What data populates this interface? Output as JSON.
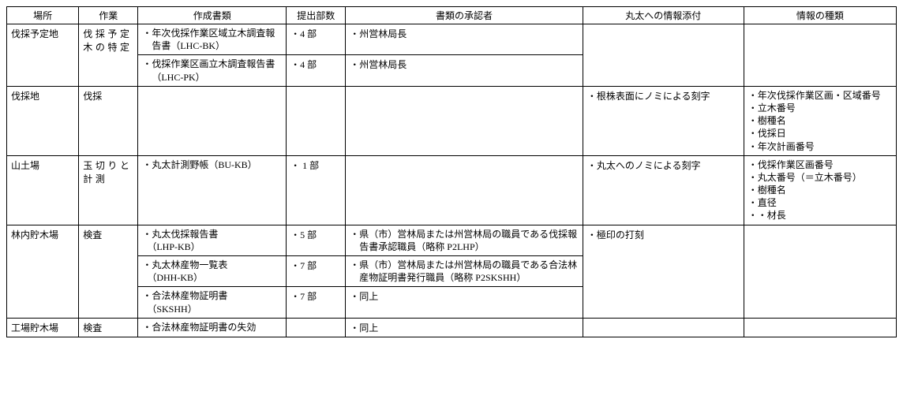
{
  "headers": {
    "place": "場所",
    "work": "作業",
    "docs": "作成書類",
    "copies": "提出部数",
    "approver": "書類の承認者",
    "attach": "丸太への情報添付",
    "info": "情報の種類"
  },
  "rows": {
    "r1": {
      "place": "伐採予定地",
      "work": "伐採予定木の特定",
      "doc": "・年次伐採作業区域立木調査報告書（LHC-BK）",
      "copies": "・4 部",
      "approver": "・州営林局長"
    },
    "r2": {
      "doc": "・伐採作業区画立木調査報告書（LHC-PK）",
      "copies": "・4 部",
      "approver": "・州営林局長"
    },
    "r3": {
      "place": "伐採地",
      "work": "伐採",
      "attach": "・根株表面にノミによる刻字",
      "info1": "・年次伐採作業区画・区域番号",
      "info2": "・立木番号",
      "info3": "・樹種名",
      "info4": "・伐採日",
      "info5": "・年次計画番号"
    },
    "r4": {
      "place": "山土場",
      "work": "玉切りと計測",
      "doc": "・丸太計測野帳（BU-KB）",
      "copies": "・ 1 部",
      "attach": "・丸太へのノミによる刻字",
      "info1": "・伐採作業区画番号",
      "info2": "・丸太番号（＝立木番号）",
      "info3": "・樹種名",
      "info4": "・直径",
      "info5": "・・材長"
    },
    "r5": {
      "place": "林内貯木場",
      "work": "検査",
      "doc1": "・丸太伐採報告書",
      "doc1b": "（LHP-KB）",
      "copies": "・5 部",
      "approver": "・県（市）営林局または州営林局の職員である伐採報告書承認職員（略称 P2LHP）",
      "attach": "・極印の打刻"
    },
    "r6": {
      "doc1": "・丸太林産物一覧表",
      "doc1b": "（DHH-KB）",
      "copies": "・7 部",
      "approver": "・県（市）営林局または州営林局の職員である合法林産物証明書発行職員（略称 P2SKSHH）"
    },
    "r7": {
      "doc1": "・合法林産物証明書",
      "doc1b": "（SKSHH）",
      "copies": "・7 部",
      "approver": "・同上"
    },
    "r8": {
      "place": "工場貯木場",
      "work": "検査",
      "doc": "・合法林産物証明書の失効",
      "approver": "・同上"
    }
  }
}
